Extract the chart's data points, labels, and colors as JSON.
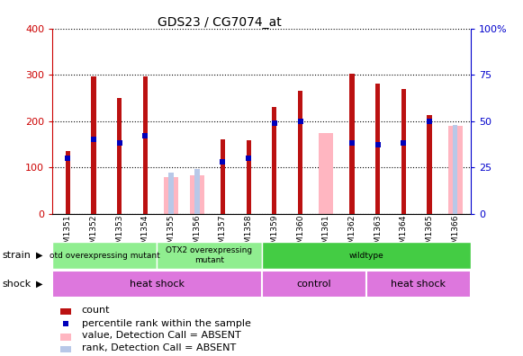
{
  "title": "GDS23 / CG7074_at",
  "samples": [
    "GSM1351",
    "GSM1352",
    "GSM1353",
    "GSM1354",
    "GSM1355",
    "GSM1356",
    "GSM1357",
    "GSM1358",
    "GSM1359",
    "GSM1360",
    "GSM1361",
    "GSM1362",
    "GSM1363",
    "GSM1364",
    "GSM1365",
    "GSM1366"
  ],
  "counts": [
    135,
    297,
    250,
    297,
    null,
    null,
    160,
    158,
    230,
    265,
    null,
    303,
    280,
    270,
    213,
    null
  ],
  "counts_absent": [
    null,
    null,
    null,
    null,
    78,
    82,
    null,
    null,
    null,
    null,
    175,
    null,
    null,
    null,
    null,
    190
  ],
  "percentile_vals": [
    30,
    40,
    38,
    42,
    null,
    null,
    28,
    30,
    49,
    50,
    null,
    38,
    37,
    38,
    50,
    null
  ],
  "percentile_absent": [
    null,
    null,
    null,
    null,
    22,
    24,
    null,
    null,
    null,
    null,
    null,
    null,
    null,
    null,
    null,
    48
  ],
  "ylim_left": [
    0,
    400
  ],
  "ylim_right": [
    0,
    100
  ],
  "yticks_left": [
    0,
    100,
    200,
    300,
    400
  ],
  "yticks_right": [
    0,
    25,
    50,
    75,
    100
  ],
  "yticklabels_right": [
    "0",
    "25",
    "50",
    "75",
    "100%"
  ],
  "strain_groups": [
    {
      "label": "otd overexpressing mutant",
      "start": 0,
      "end": 4,
      "color": "#90ee90"
    },
    {
      "label": "OTX2 overexpressing\nmutant",
      "start": 4,
      "end": 8,
      "color": "#90ee90"
    },
    {
      "label": "wildtype",
      "start": 8,
      "end": 16,
      "color": "#44cc44"
    }
  ],
  "shock_groups": [
    {
      "label": "heat shock",
      "start": 0,
      "end": 8,
      "color": "#dd77dd"
    },
    {
      "label": "control",
      "start": 8,
      "end": 12,
      "color": "#dd77dd"
    },
    {
      "label": "heat shock",
      "start": 12,
      "end": 16,
      "color": "#dd77dd"
    }
  ],
  "count_color": "#bb1111",
  "percentile_color": "#0000bb",
  "absent_count_color": "#ffb6c1",
  "absent_percentile_color": "#b8c8e8",
  "grid_color": "#000000",
  "label_color_left": "#cc0000",
  "label_color_right": "#0000cc",
  "plot_bg": "#ffffff"
}
